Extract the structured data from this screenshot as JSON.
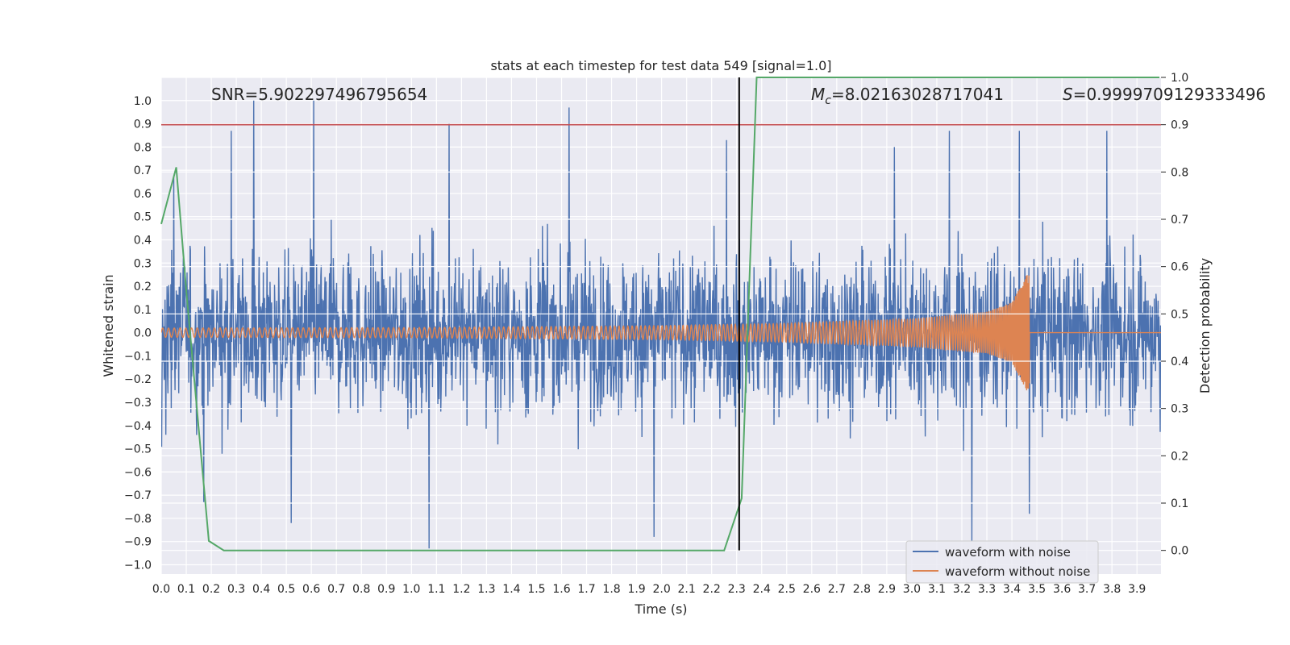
{
  "chart_data": {
    "type": "line",
    "title": "stats at each timestep for test data 549 [signal=1.0]",
    "xlabel": "Time (s)",
    "ylabel": "Whitened strain",
    "y2label": "Detection probability",
    "xlim": [
      0.0,
      3.996
    ],
    "ylim": [
      -1.04,
      1.1
    ],
    "y2lim": [
      -0.05,
      1.0
    ],
    "xticks": [
      "0.0",
      "0.1",
      "0.2",
      "0.3",
      "0.4",
      "0.5",
      "0.6",
      "0.7",
      "0.8",
      "0.9",
      "1.0",
      "1.1",
      "1.2",
      "1.3",
      "1.4",
      "1.5",
      "1.6",
      "1.7",
      "1.8",
      "1.9",
      "2.0",
      "2.1",
      "2.2",
      "2.3",
      "2.4",
      "2.5",
      "2.6",
      "2.7",
      "2.8",
      "2.9",
      "3.0",
      "3.1",
      "3.2",
      "3.3",
      "3.4",
      "3.5",
      "3.6",
      "3.7",
      "3.8",
      "3.9"
    ],
    "yticks": [
      "1.0",
      "0.9",
      "0.8",
      "0.7",
      "0.6",
      "0.5",
      "0.4",
      "0.3",
      "0.2",
      "0.1",
      "0.0",
      "−0.1",
      "−0.2",
      "−0.3",
      "−0.4",
      "−0.5",
      "−0.6",
      "−0.7",
      "−0.8",
      "−0.9",
      "−1.0"
    ],
    "y2ticks": [
      "1.0",
      "0.9",
      "0.8",
      "0.7",
      "0.6",
      "0.5",
      "0.4",
      "0.3",
      "0.2",
      "0.1",
      "0.0"
    ],
    "annotations": {
      "snr": "SNR=5.902297496795654",
      "mc_symbol": "M",
      "mc_sub": "c",
      "mc_value": "=8.02163028717041",
      "s_symbol": "S",
      "s_value": "=0.9999709129333496"
    },
    "threshold_line": {
      "y2": 0.9,
      "color": "#c44e52"
    },
    "merger_line": {
      "x": 2.31,
      "color": "#000000"
    },
    "series": [
      {
        "name": "waveform with noise",
        "color": "#4c72b0",
        "description": "noisy whitened strain, roughly uniform amplitude about ±0.35 with spikes up to 1.0 and down to -0.93",
        "envelope_peaks": [
          {
            "x": 0.05,
            "y": 0.67
          },
          {
            "x": 0.28,
            "y": 0.87
          },
          {
            "x": 0.37,
            "y": 1.0
          },
          {
            "x": 0.61,
            "y": 1.0
          },
          {
            "x": 1.15,
            "y": 0.9
          },
          {
            "x": 1.63,
            "y": 0.97
          },
          {
            "x": 2.26,
            "y": 0.83
          },
          {
            "x": 2.93,
            "y": 0.8
          },
          {
            "x": 3.15,
            "y": 0.87
          },
          {
            "x": 3.43,
            "y": 0.87
          },
          {
            "x": 3.78,
            "y": 0.87
          },
          {
            "x": 0.17,
            "y": -0.73
          },
          {
            "x": 0.52,
            "y": -0.82
          },
          {
            "x": 1.07,
            "y": -0.93
          },
          {
            "x": 1.97,
            "y": -0.88
          },
          {
            "x": 3.24,
            "y": -0.9
          },
          {
            "x": 3.47,
            "y": -0.78
          }
        ]
      },
      {
        "name": "waveform without noise",
        "color": "#dd8452",
        "description": "chirp: amplitude grows from ~0.02 at t=0 to ~0.25 at t=3.46, then drops to zero",
        "amplitude_points": [
          {
            "x": 0.0,
            "y": 0.02
          },
          {
            "x": 1.0,
            "y": 0.022
          },
          {
            "x": 2.0,
            "y": 0.03
          },
          {
            "x": 2.5,
            "y": 0.04
          },
          {
            "x": 3.0,
            "y": 0.06
          },
          {
            "x": 3.3,
            "y": 0.09
          },
          {
            "x": 3.4,
            "y": 0.13
          },
          {
            "x": 3.46,
            "y": 0.25
          }
        ],
        "merger_time": 3.47
      },
      {
        "name": "detection probability",
        "color": "#55a868",
        "axis": "y2",
        "x": [
          0.0,
          0.06,
          0.1,
          0.19,
          0.25,
          2.25,
          2.32,
          2.38,
          3.99
        ],
        "y": [
          0.69,
          0.81,
          0.55,
          0.02,
          0.0,
          0.0,
          0.11,
          1.0,
          1.0
        ]
      }
    ],
    "legend": {
      "position": "lower-right",
      "entries": [
        "waveform with noise",
        "waveform without noise"
      ]
    }
  }
}
